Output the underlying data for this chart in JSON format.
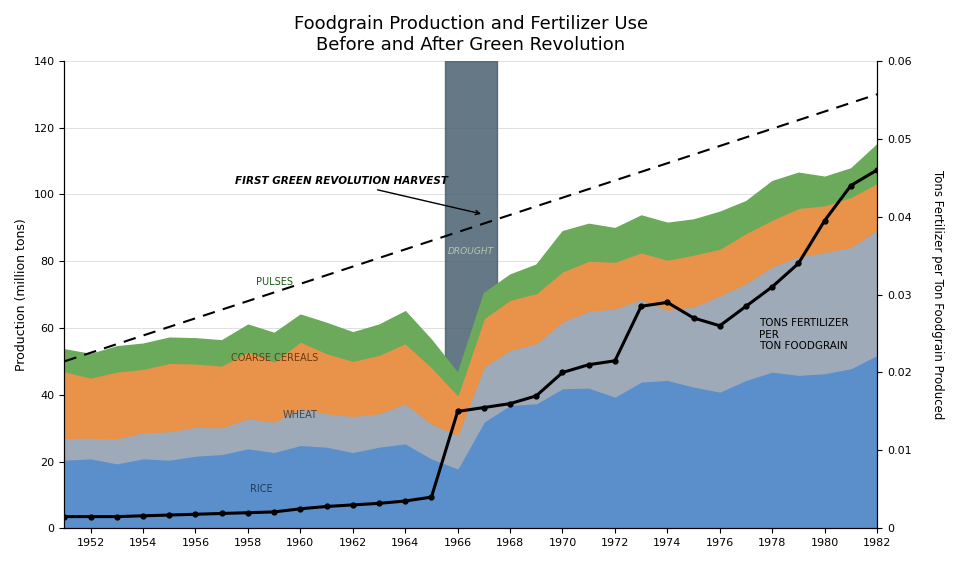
{
  "title": "Foodgrain Production and Fertilizer Use\nBefore and After Green Revolution",
  "ylabel_left": "Production (million tons)",
  "ylabel_right": "Tons Fertilizer per Ton Foodgrain Produced",
  "years": [
    1951,
    1952,
    1953,
    1954,
    1955,
    1956,
    1957,
    1958,
    1959,
    1960,
    1961,
    1962,
    1963,
    1964,
    1965,
    1966,
    1967,
    1968,
    1969,
    1970,
    1971,
    1972,
    1973,
    1974,
    1975,
    1976,
    1977,
    1978,
    1979,
    1980,
    1981,
    1982
  ],
  "rice": [
    20.6,
    21.0,
    19.5,
    21.0,
    20.6,
    21.8,
    22.3,
    24.0,
    22.9,
    25.0,
    24.5,
    22.9,
    24.5,
    25.5,
    21.0,
    18.0,
    32.0,
    37.0,
    37.5,
    42.0,
    42.2,
    39.5,
    44.0,
    44.5,
    42.5,
    41.0,
    44.5,
    47.0,
    46.0,
    46.5,
    48.0,
    52.0
  ],
  "wheat": [
    6.5,
    6.2,
    7.5,
    7.8,
    8.5,
    8.6,
    8.0,
    9.0,
    9.1,
    11.0,
    10.0,
    10.8,
    10.0,
    12.0,
    10.4,
    10.0,
    16.5,
    16.5,
    18.0,
    20.0,
    23.0,
    26.4,
    24.7,
    21.0,
    24.0,
    28.8,
    29.0,
    31.5,
    35.5,
    36.3,
    36.3,
    37.5
  ],
  "coarse": [
    20.0,
    18.0,
    20.0,
    19.0,
    20.5,
    19.0,
    18.5,
    20.0,
    18.0,
    20.0,
    18.0,
    16.5,
    17.5,
    18.0,
    17.0,
    12.0,
    14.5,
    15.0,
    15.0,
    15.0,
    15.0,
    14.0,
    14.0,
    15.0,
    15.5,
    14.0,
    15.0,
    14.0,
    14.5,
    14.0,
    15.0,
    14.0
  ],
  "pulses": [
    6.5,
    7.0,
    7.5,
    7.5,
    7.5,
    7.5,
    7.5,
    8.0,
    8.5,
    8.0,
    9.0,
    8.5,
    9.0,
    9.5,
    8.0,
    6.5,
    7.5,
    7.5,
    8.5,
    12.0,
    11.0,
    10.0,
    11.0,
    11.0,
    10.5,
    11.0,
    9.5,
    11.5,
    10.5,
    8.5,
    8.5,
    11.5
  ],
  "fertilizer_ratio": [
    0.0015,
    0.0015,
    0.0015,
    0.0016,
    0.0017,
    0.0018,
    0.0019,
    0.002,
    0.0021,
    0.0025,
    0.0028,
    0.003,
    0.0032,
    0.0035,
    0.004,
    0.015,
    0.0155,
    0.016,
    0.017,
    0.02,
    0.021,
    0.0215,
    0.0285,
    0.029,
    0.027,
    0.026,
    0.0285,
    0.031,
    0.034,
    0.0395,
    0.044,
    0.046
  ],
  "trend_x": [
    1951,
    1982
  ],
  "trend_y": [
    50,
    130
  ],
  "drought_xspan": [
    1965.5,
    1967.5
  ],
  "color_rice": "#5b8fcc",
  "color_wheat": "#9eaab8",
  "color_coarse": "#e8924a",
  "color_pulses": "#6aaa5a",
  "color_drought_bg": "#4a6070",
  "xlim": [
    1951,
    1982
  ],
  "ylim_left": [
    0,
    140
  ],
  "ylim_right": [
    0,
    0.06
  ],
  "xticks": [
    1952,
    1954,
    1956,
    1958,
    1960,
    1962,
    1964,
    1966,
    1968,
    1970,
    1972,
    1974,
    1976,
    1978,
    1980,
    1982
  ],
  "yticks_left": [
    0,
    20,
    40,
    60,
    80,
    100,
    120,
    140
  ],
  "yticks_right": [
    0,
    0.01,
    0.02,
    0.03,
    0.04,
    0.05,
    0.06
  ]
}
